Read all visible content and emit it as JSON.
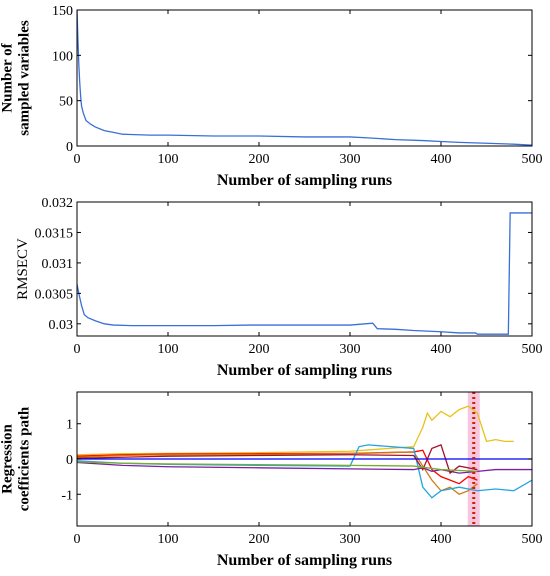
{
  "chart_data": [
    {
      "type": "line",
      "xlabel": "Number of sampling runs",
      "ylabel": [
        "Number of",
        "sampled variables"
      ],
      "xlim": [
        0,
        500
      ],
      "ylim": [
        0,
        150
      ],
      "xticks": [
        0,
        100,
        200,
        300,
        400,
        500
      ],
      "yticks": [
        0,
        50,
        100,
        150
      ],
      "grid": false,
      "series": [
        {
          "color": "#3a6fd8",
          "x": [
            0,
            1,
            2,
            3,
            4,
            5,
            7,
            10,
            15,
            20,
            30,
            40,
            50,
            80,
            100,
            150,
            200,
            250,
            300,
            320,
            350,
            380,
            400,
            420,
            450,
            480,
            500
          ],
          "y": [
            150,
            118,
            90,
            70,
            55,
            44,
            36,
            28,
            24,
            21,
            17,
            15,
            13,
            12,
            12,
            11,
            11,
            10,
            10,
            9,
            7,
            6,
            5,
            4,
            3,
            2,
            1
          ]
        }
      ]
    },
    {
      "type": "line",
      "xlabel": "Number of sampling runs",
      "ylabel": [
        "RMSECV"
      ],
      "xlim": [
        0,
        500
      ],
      "ylim": [
        0.0298,
        0.032
      ],
      "xticks": [
        0,
        100,
        200,
        300,
        400,
        500
      ],
      "yticks": [
        0.03,
        0.0305,
        0.031,
        0.0315,
        0.032
      ],
      "ytick_labels": [
        "0.03",
        "0.0305",
        "0.031",
        "0.0315",
        "0.032"
      ],
      "grid": false,
      "series": [
        {
          "color": "#3a6fd8",
          "x": [
            0,
            2,
            5,
            8,
            12,
            20,
            30,
            40,
            60,
            100,
            150,
            190,
            250,
            300,
            325,
            330,
            350,
            370,
            400,
            420,
            438,
            440,
            460,
            474,
            476,
            500
          ],
          "y": [
            0.03065,
            0.0305,
            0.0303,
            0.03015,
            0.0301,
            0.03005,
            0.03,
            0.02998,
            0.02997,
            0.02997,
            0.02997,
            0.02998,
            0.02998,
            0.02998,
            0.03001,
            0.02992,
            0.02991,
            0.02989,
            0.02987,
            0.02985,
            0.02985,
            0.02983,
            0.02983,
            0.02983,
            0.03182,
            0.03182
          ]
        }
      ]
    },
    {
      "type": "line",
      "xlabel": "Number of sampling runs",
      "ylabel": [
        "Regression",
        "coefficients path"
      ],
      "xlim": [
        0,
        500
      ],
      "ylim": [
        -1.9,
        1.9
      ],
      "xticks": [
        0,
        100,
        200,
        300,
        400,
        500
      ],
      "yticks": [
        -1,
        0,
        1
      ],
      "grid": false,
      "optimal_run": 436,
      "series": [
        {
          "color": "#e8c21b",
          "x": [
            0,
            50,
            100,
            200,
            300,
            370,
            380,
            385,
            390,
            400,
            410,
            420,
            430,
            440,
            450,
            460,
            470,
            480
          ],
          "y": [
            0.12,
            0.15,
            0.16,
            0.18,
            0.22,
            0.35,
            0.9,
            1.3,
            1.1,
            1.35,
            1.2,
            1.4,
            1.5,
            1.3,
            0.5,
            0.55,
            0.5,
            0.5
          ]
        },
        {
          "color": "#ff0000",
          "x": [
            0,
            50,
            100,
            200,
            300,
            370,
            380,
            390,
            400,
            410,
            420,
            430,
            440
          ],
          "y": [
            0.08,
            0.12,
            0.14,
            0.15,
            0.16,
            0.2,
            0.25,
            -0.3,
            -0.5,
            -0.6,
            -0.7,
            -0.5,
            -0.6
          ]
        },
        {
          "color": "#d27a10",
          "x": [
            0,
            50,
            100,
            200,
            300,
            370,
            380,
            390,
            400,
            410,
            420,
            430,
            440
          ],
          "y": [
            0.05,
            0.1,
            0.12,
            0.13,
            0.15,
            0.2,
            -0.2,
            -0.6,
            -0.9,
            -0.8,
            -1.0,
            -0.9,
            -0.7
          ]
        },
        {
          "color": "#23a5e0",
          "x": [
            0,
            50,
            100,
            200,
            300,
            310,
            320,
            370,
            380,
            390,
            400,
            420,
            440,
            460,
            480,
            500
          ],
          "y": [
            -0.05,
            -0.12,
            -0.15,
            -0.18,
            -0.2,
            0.35,
            0.4,
            0.3,
            -0.8,
            -1.1,
            -0.9,
            -0.8,
            -0.9,
            -0.85,
            -0.9,
            -0.6
          ]
        },
        {
          "color": "#7a1fa2",
          "x": [
            0,
            50,
            100,
            200,
            300,
            370,
            380,
            390,
            400,
            420,
            440,
            460,
            480,
            500
          ],
          "y": [
            -0.1,
            -0.18,
            -0.22,
            -0.25,
            -0.28,
            -0.3,
            -0.25,
            -0.35,
            -0.3,
            -0.4,
            -0.35,
            -0.3,
            -0.3,
            -0.3
          ]
        },
        {
          "color": "#a2142f",
          "x": [
            0,
            50,
            100,
            200,
            300,
            370,
            380,
            390,
            400,
            410,
            420,
            440
          ],
          "y": [
            0.02,
            0.05,
            0.08,
            0.1,
            0.12,
            0.1,
            -0.3,
            0.3,
            0.4,
            -0.4,
            -0.2,
            -0.3
          ]
        },
        {
          "color": "#77ac30",
          "x": [
            0,
            50,
            100,
            200,
            300,
            370,
            400,
            440
          ],
          "y": [
            -0.08,
            -0.12,
            -0.14,
            -0.16,
            -0.18,
            -0.2,
            -0.3,
            -0.35
          ]
        },
        {
          "color": "#0000ff",
          "x": [
            0,
            500
          ],
          "y": [
            0,
            0
          ]
        }
      ]
    }
  ]
}
